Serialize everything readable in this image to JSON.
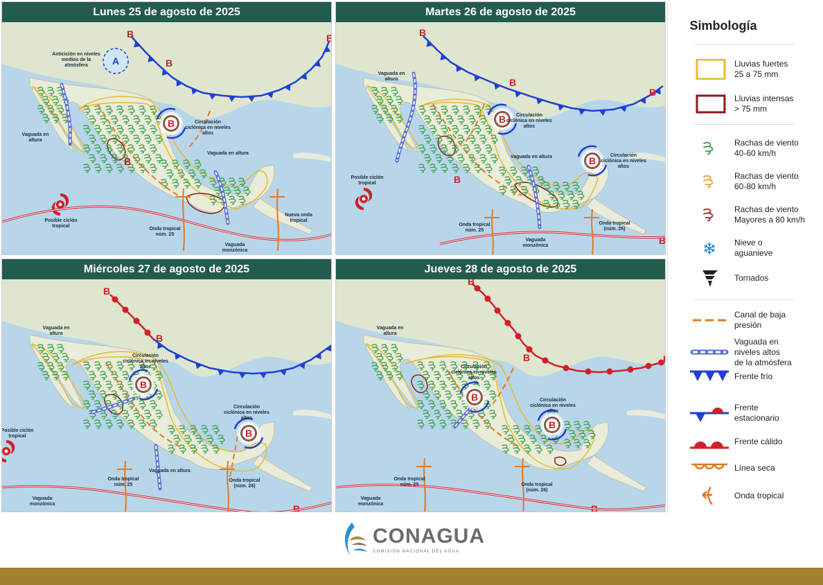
{
  "panels": [
    {
      "title": "Lunes 25 de agosto de 2025",
      "labels": [
        "Anticición en niveles medios de la atmósfera",
        "Circulación ciclónica en niveles altos",
        "Vaguada en altura",
        "Vaguada en altura",
        "Posible ciclón tropical",
        "Onda tropical núm. 25",
        "Nueva onda tropical",
        "Vaguada monzónica"
      ]
    },
    {
      "title": "Martes 26 de agosto de 2025",
      "labels": [
        "Vaguada en altura",
        "Circulación ciclónica en niveles altos",
        "Circulación ciclónica en niveles altos",
        "Vaguada en altura",
        "Posible ciclón tropical",
        "Onda tropical núm. 25",
        "Onda tropical (núm. 26)",
        "Vaguada monzónica"
      ]
    },
    {
      "title": "Miércoles 27 de agosto de 2025",
      "labels": [
        "Vaguada en altura",
        "Circulación ciclónica en niveles altos",
        "Circulación ciclónica en niveles altos",
        "Posible ciclón tropical",
        "Vaguada en altura",
        "Onda tropical núm. 25",
        "Onda tropical (núm. 26)",
        "Vaguada monzónica"
      ]
    },
    {
      "title": "Jueves 28 de agosto de 2025",
      "labels": [
        "Vaguada en altura",
        "Circulación ciclónica en niveles altos",
        "Circulación ciclónica en niveles altos",
        "Onda tropical núm. 25",
        "Onda tropical (núm. 26)",
        "Vaguada monzónica"
      ]
    }
  ],
  "pressure_letters": {
    "low": "B",
    "high": "A"
  },
  "legend": {
    "title": "Simbología",
    "items": [
      {
        "icon": "heavy-rain-box-icon",
        "label": "Lluvias fuertes\n25 a 75 mm"
      },
      {
        "icon": "intense-rain-box-icon",
        "label": "Lluvias intensas\n> 75 mm"
      },
      {
        "icon": "wind-green-icon",
        "label": "Rachas de viento\n40-60 km/h"
      },
      {
        "icon": "wind-orange-icon",
        "label": "Rachas de viento\n60-80 km/h"
      },
      {
        "icon": "wind-red-icon",
        "label": "Rachas de viento\nMayores a 80 km/h"
      },
      {
        "icon": "snowflake-icon",
        "label": "Nieve o\naguanieve"
      },
      {
        "icon": "tornado-icon",
        "label": "Tornados"
      },
      {
        "icon": "low-pressure-trough-icon",
        "label": "Canal de baja\npresión"
      },
      {
        "icon": "upper-trough-icon",
        "label": "Vaguada en\nniveles altos\nde la atmósfera"
      },
      {
        "icon": "cold-front-icon",
        "label": "Frente frío"
      },
      {
        "icon": "stationary-front-icon",
        "label": "Frente\nestacionario"
      },
      {
        "icon": "warm-front-icon",
        "label": "Frente cálido"
      },
      {
        "icon": "dry-line-icon",
        "label": "Línea seca"
      },
      {
        "icon": "tropical-wave-icon",
        "label": "Onda tropical"
      }
    ]
  },
  "footer": {
    "logo_name": "CONAGUA",
    "logo_sub": "COMISIÓN NACIONAL DEL AGUA"
  },
  "colors": {
    "header": "#235b4e",
    "ocean": "#b8d6ea",
    "land": "#e9ecd9",
    "cold_front": "#1f3fd6",
    "warm_front": "#d0202a",
    "heavy_rain": "#e8b92e",
    "intense_rain": "#8b1a1a",
    "wind_green": "#3aa14a",
    "trough": "#e07a1f",
    "bar": "#a1822e"
  }
}
